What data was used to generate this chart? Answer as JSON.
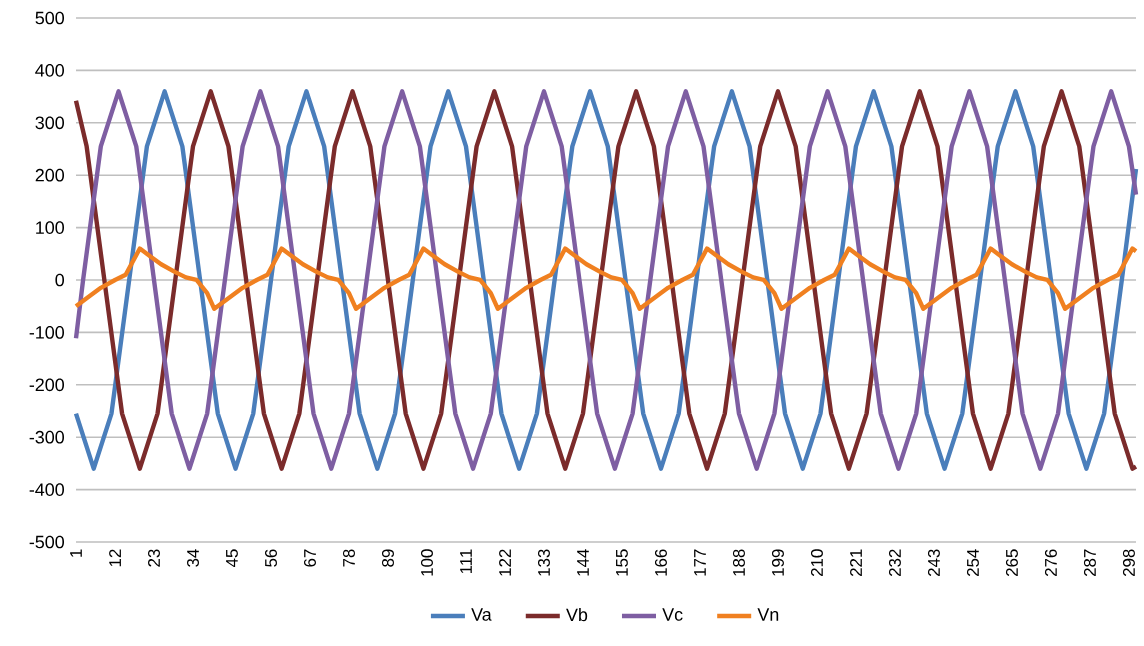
{
  "chart_data": {
    "type": "line",
    "xlim": [
      1,
      300
    ],
    "ylim": [
      -500,
      500
    ],
    "xticks": [
      1,
      12,
      23,
      34,
      45,
      56,
      67,
      78,
      89,
      100,
      111,
      122,
      133,
      144,
      155,
      166,
      177,
      188,
      199,
      210,
      221,
      232,
      243,
      254,
      265,
      276,
      287,
      298
    ],
    "yticks": [
      -500,
      -400,
      -300,
      -200,
      -100,
      0,
      100,
      200,
      300,
      400,
      500
    ],
    "grid": "y",
    "legend": "bottom",
    "series": [
      {
        "name": "Va",
        "color": "#4a7ebb",
        "x": [
          1,
          6,
          11,
          16,
          21,
          26,
          31,
          36,
          41,
          46,
          51,
          56,
          61,
          66,
          71,
          76,
          81,
          86,
          91,
          96,
          101,
          106,
          111,
          116,
          121,
          126,
          131,
          136,
          141,
          146,
          151,
          156,
          161,
          166,
          171,
          176,
          181,
          186,
          191,
          196,
          201,
          206,
          211,
          216,
          221,
          226,
          231,
          236,
          241,
          246,
          251,
          256,
          261,
          266,
          271,
          276,
          281,
          286,
          291,
          296,
          300
        ],
        "values": [
          -255,
          -360,
          -255,
          0,
          255,
          360,
          255,
          0,
          -255,
          -360,
          -255,
          0,
          255,
          360,
          255,
          0,
          -255,
          -360,
          -255,
          0,
          255,
          360,
          255,
          0,
          -255,
          -360,
          -255,
          0,
          255,
          360,
          255,
          0,
          -255,
          -360,
          -255,
          0,
          255,
          360,
          255,
          0,
          -255,
          -360,
          -255,
          0,
          255,
          360,
          255,
          0,
          -255,
          -360,
          -255,
          0,
          255,
          360,
          255,
          0,
          -255,
          -360,
          -255,
          0,
          212
        ]
      },
      {
        "name": "Vb",
        "color": "#7b2b2b",
        "x": [
          1,
          4,
          9,
          14,
          19,
          24,
          29,
          34,
          39,
          44,
          49,
          54,
          59,
          64,
          69,
          74,
          79,
          84,
          89,
          94,
          99,
          104,
          109,
          114,
          119,
          124,
          129,
          134,
          139,
          144,
          149,
          154,
          159,
          164,
          169,
          174,
          179,
          184,
          189,
          194,
          199,
          204,
          209,
          214,
          219,
          224,
          229,
          234,
          239,
          244,
          249,
          254,
          259,
          264,
          269,
          274,
          279,
          284,
          289,
          294,
          299,
          300
        ],
        "values": [
          342,
          255,
          0,
          -255,
          -360,
          -255,
          0,
          255,
          360,
          255,
          0,
          -255,
          -360,
          -255,
          0,
          255,
          360,
          255,
          0,
          -255,
          -360,
          -255,
          0,
          255,
          360,
          255,
          0,
          -255,
          -360,
          -255,
          0,
          255,
          360,
          255,
          0,
          -255,
          -360,
          -255,
          0,
          255,
          360,
          255,
          0,
          -255,
          -360,
          -255,
          0,
          255,
          360,
          255,
          0,
          -255,
          -360,
          -255,
          0,
          255,
          360,
          255,
          0,
          -255,
          -360,
          -356
        ]
      },
      {
        "name": "Vc",
        "color": "#7e5ea2",
        "x": [
          1,
          3,
          8,
          13,
          18,
          23,
          28,
          33,
          38,
          43,
          48,
          53,
          58,
          63,
          68,
          73,
          78,
          83,
          88,
          93,
          98,
          103,
          108,
          113,
          118,
          123,
          128,
          133,
          138,
          143,
          148,
          153,
          158,
          163,
          168,
          173,
          178,
          183,
          188,
          193,
          198,
          203,
          208,
          213,
          218,
          223,
          228,
          233,
          238,
          243,
          248,
          253,
          258,
          263,
          268,
          273,
          278,
          283,
          288,
          293,
          298,
          300
        ],
        "values": [
          -111,
          0,
          255,
          360,
          255,
          0,
          -255,
          -360,
          -255,
          0,
          255,
          360,
          255,
          0,
          -255,
          -360,
          -255,
          0,
          255,
          360,
          255,
          0,
          -255,
          -360,
          -255,
          0,
          255,
          360,
          255,
          0,
          -255,
          -360,
          -255,
          0,
          255,
          360,
          255,
          0,
          -255,
          -360,
          -255,
          0,
          255,
          360,
          255,
          0,
          -255,
          -360,
          -255,
          0,
          255,
          360,
          255,
          0,
          -255,
          -360,
          -255,
          0,
          255,
          360,
          255,
          163
        ]
      },
      {
        "name": "Vn",
        "color": "#f08020",
        "x": [
          1,
          4,
          8,
          12,
          15,
          19,
          22,
          25,
          29,
          32,
          35,
          38,
          40,
          44,
          48,
          52,
          55,
          59,
          62,
          65,
          69,
          72,
          75,
          78,
          80,
          84,
          88,
          92,
          95,
          99,
          102,
          105,
          109,
          112,
          115,
          118,
          120,
          124,
          128,
          132,
          135,
          139,
          142,
          145,
          149,
          152,
          155,
          158,
          160,
          164,
          168,
          172,
          175,
          179,
          182,
          185,
          189,
          192,
          195,
          198,
          200,
          204,
          208,
          212,
          215,
          219,
          222,
          225,
          229,
          232,
          235,
          238,
          240,
          244,
          248,
          252,
          255,
          259,
          262,
          265,
          269,
          272,
          275,
          278,
          280,
          284,
          288,
          292,
          295,
          299,
          300
        ],
        "values": [
          -50,
          -35,
          -15,
          0,
          10,
          60,
          45,
          30,
          15,
          5,
          0,
          -25,
          -55,
          -35,
          -15,
          0,
          10,
          60,
          45,
          30,
          15,
          5,
          0,
          -25,
          -55,
          -35,
          -15,
          0,
          10,
          60,
          45,
          30,
          15,
          5,
          0,
          -25,
          -55,
          -35,
          -15,
          0,
          10,
          60,
          45,
          30,
          15,
          5,
          0,
          -25,
          -55,
          -35,
          -15,
          0,
          10,
          60,
          45,
          30,
          15,
          5,
          0,
          -25,
          -55,
          -35,
          -15,
          0,
          10,
          60,
          45,
          30,
          15,
          5,
          0,
          -25,
          -55,
          -35,
          -15,
          0,
          10,
          60,
          45,
          30,
          15,
          5,
          0,
          -25,
          -55,
          -35,
          -15,
          0,
          10,
          60,
          55
        ]
      }
    ]
  }
}
